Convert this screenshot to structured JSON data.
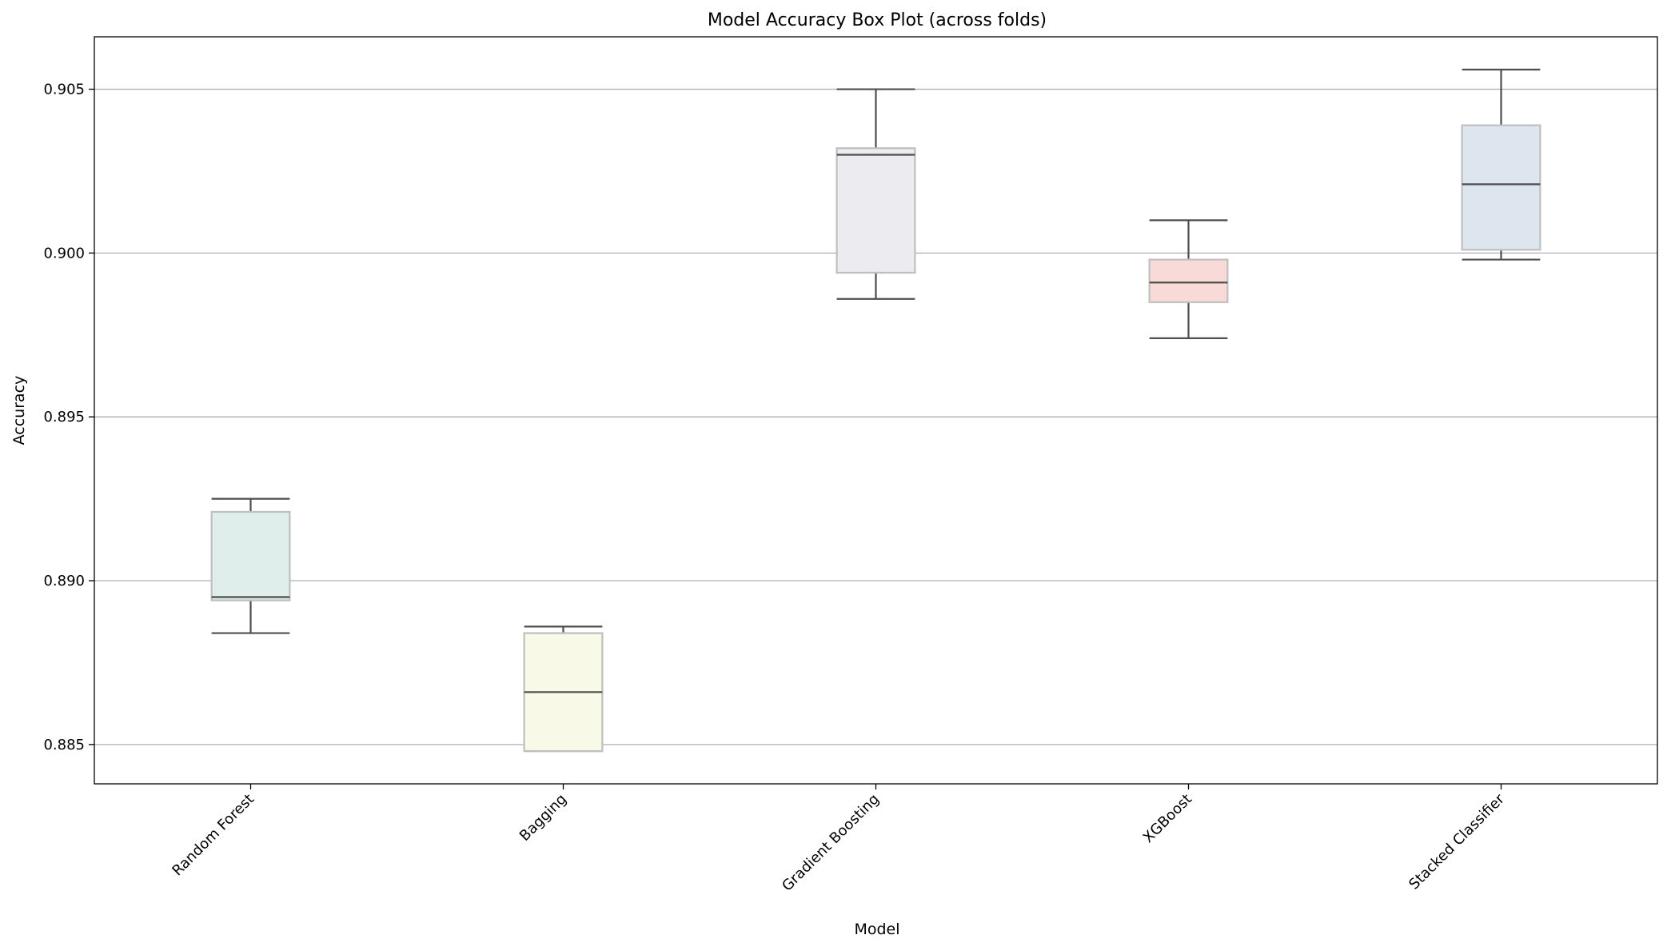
{
  "chart_data": {
    "type": "box",
    "title": "Model Accuracy Box Plot (across folds)",
    "xlabel": "Model",
    "ylabel": "Accuracy",
    "ylim": [
      0.8838,
      0.9066
    ],
    "yticks": [
      "0.885",
      "0.890",
      "0.895",
      "0.900",
      "0.905"
    ],
    "ytick_values": [
      0.885,
      0.89,
      0.895,
      0.9,
      0.905
    ],
    "grid": "horizontal",
    "categories": [
      "Random Forest",
      "Bagging",
      "Gradient Boosting",
      "XGBoost",
      "Stacked Classifier"
    ],
    "boxes": [
      {
        "whisker_low": 0.8884,
        "q1": 0.8894,
        "median": 0.8895,
        "q3": 0.8921,
        "whisker_high": 0.8925,
        "color": "#dfeeea"
      },
      {
        "whisker_low": 0.8848,
        "q1": 0.8848,
        "median": 0.8866,
        "q3": 0.8884,
        "whisker_high": 0.8886,
        "color": "#f9f9e8"
      },
      {
        "whisker_low": 0.8986,
        "q1": 0.8994,
        "median": 0.903,
        "q3": 0.9032,
        "whisker_high": 0.905,
        "color": "#ecebf0"
      },
      {
        "whisker_low": 0.8974,
        "q1": 0.8985,
        "median": 0.8991,
        "q3": 0.8998,
        "whisker_high": 0.901,
        "color": "#f8dbd9"
      },
      {
        "whisker_low": 0.8998,
        "q1": 0.9001,
        "median": 0.9021,
        "q3": 0.9039,
        "whisker_high": 0.9056,
        "color": "#dde6ef"
      }
    ],
    "box_edge_color": "#bfbfbf",
    "line_color": "#4d4d4d",
    "grid_color": "#b0b0b0"
  }
}
